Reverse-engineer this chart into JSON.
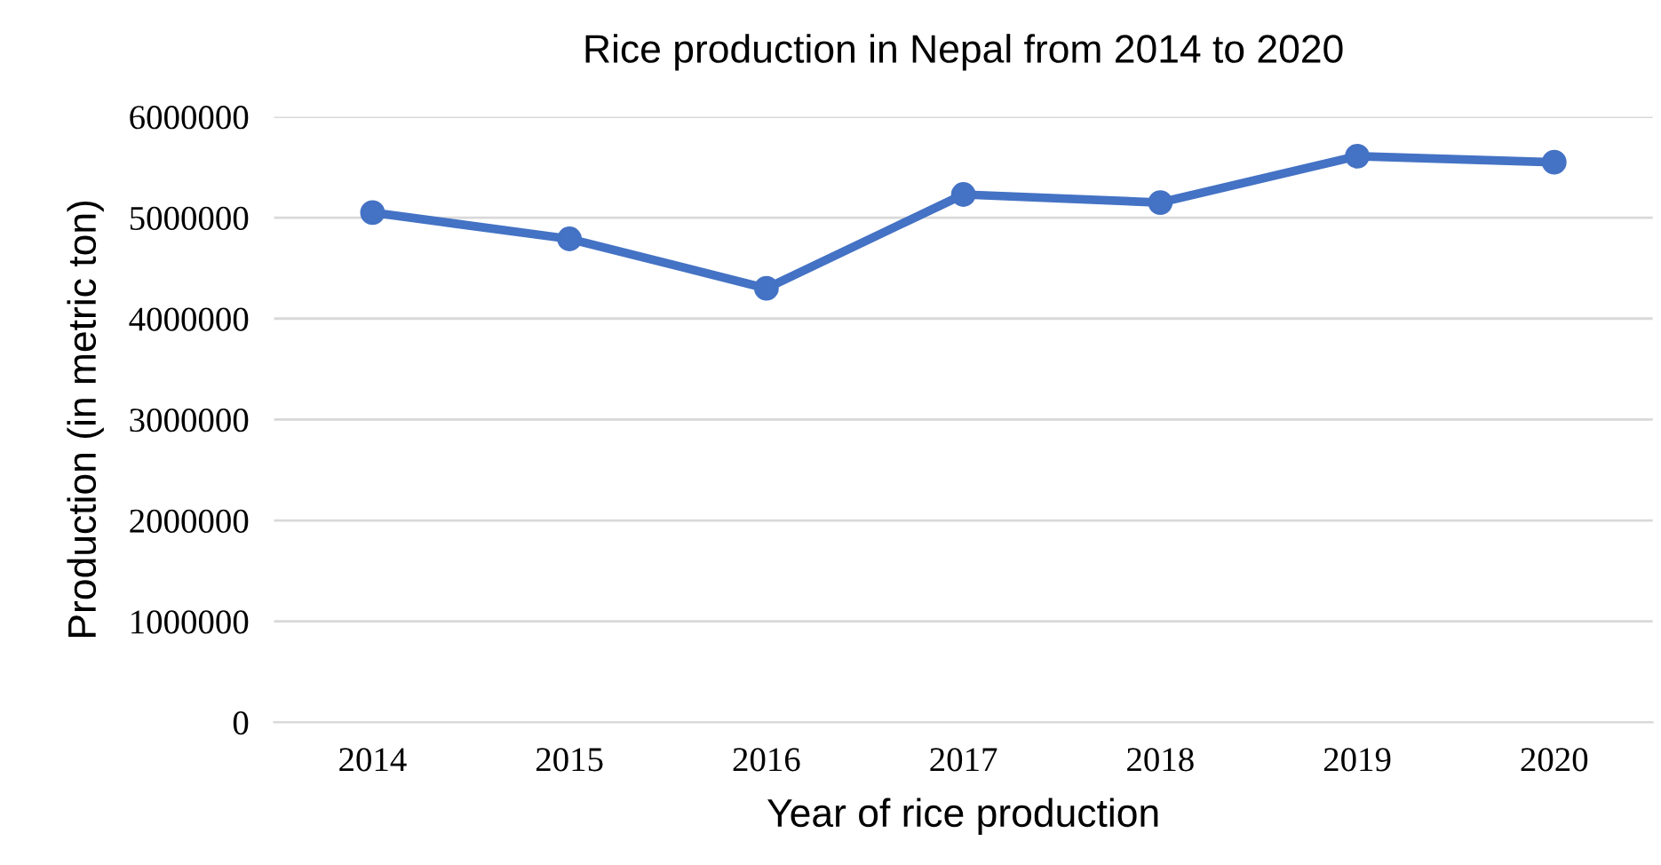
{
  "chart_data": {
    "type": "line",
    "title": "Rice production in Nepal from 2014 to 2020",
    "xlabel": "Year of rice production",
    "ylabel": "Production (in metric ton)",
    "categories": [
      "2014",
      "2015",
      "2016",
      "2017",
      "2018",
      "2019",
      "2020"
    ],
    "series": [
      {
        "color": "#4472c4",
        "values": [
          5050000,
          4790000,
          4300000,
          5230000,
          5150000,
          5610000,
          5550000
        ]
      }
    ],
    "ylim": [
      0,
      6000000
    ],
    "yticks": [
      0,
      1000000,
      2000000,
      3000000,
      4000000,
      5000000,
      6000000
    ],
    "grid": "y",
    "marker": "circle",
    "line_style": "solid",
    "legend": false
  }
}
